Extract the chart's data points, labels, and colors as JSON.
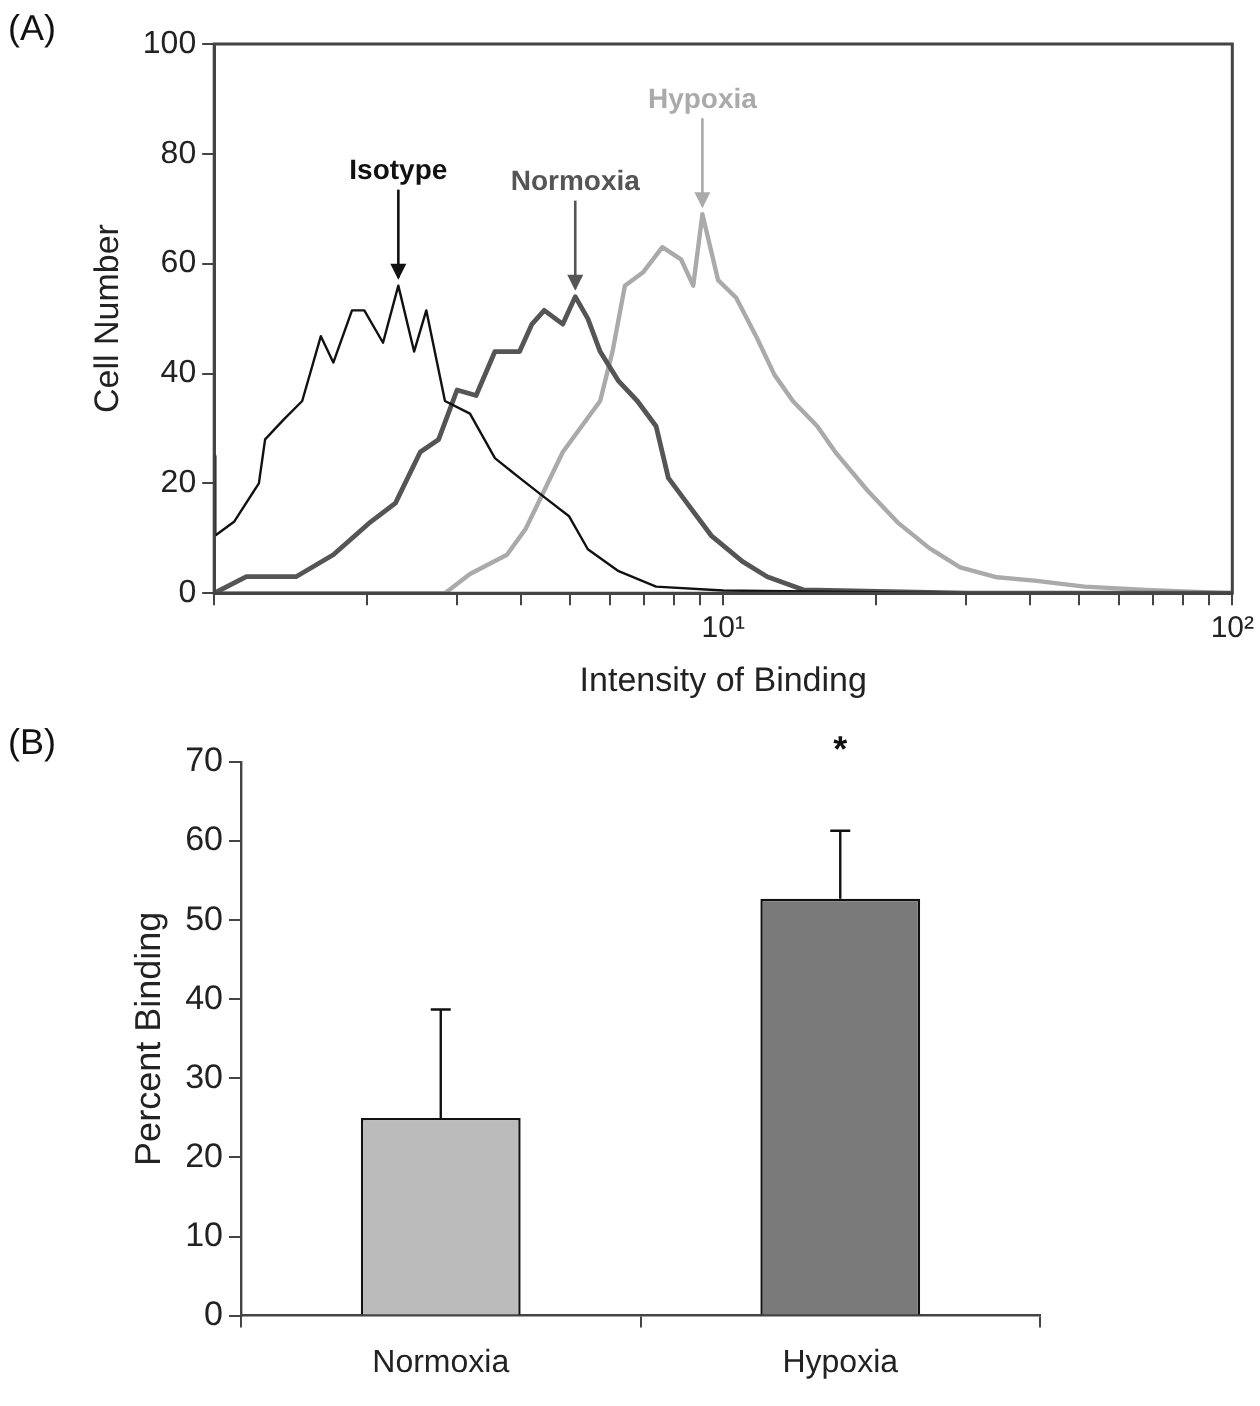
{
  "chart_data": [
    {
      "type": "line",
      "title": "(A)",
      "xlabel": "Intensity of Binding",
      "ylabel": "Cell Number",
      "log": "x",
      "grid": false,
      "marker": "none",
      "xlim": [
        1,
        100
      ],
      "xticks": [
        {
          "value": 1,
          "label": null
        },
        {
          "value": 2,
          "label": null
        },
        {
          "value": 3,
          "label": null
        },
        {
          "value": 4,
          "label": null
        },
        {
          "value": 5,
          "label": null
        },
        {
          "value": 6,
          "label": null
        },
        {
          "value": 7,
          "label": null
        },
        {
          "value": 8,
          "label": null
        },
        {
          "value": 9,
          "label": null
        },
        {
          "value": 10,
          "label": "10¹"
        },
        {
          "value": 20,
          "label": null
        },
        {
          "value": 30,
          "label": null
        },
        {
          "value": 40,
          "label": null
        },
        {
          "value": 50,
          "label": null
        },
        {
          "value": 60,
          "label": null
        },
        {
          "value": 70,
          "label": null
        },
        {
          "value": 80,
          "label": null
        },
        {
          "value": 90,
          "label": null
        },
        {
          "value": 100,
          "label": "10²"
        }
      ],
      "ylim": [
        0,
        100
      ],
      "yticks": [
        0,
        20,
        40,
        60,
        80,
        100
      ],
      "series": [
        {
          "name": "Isotype",
          "color": "#111111",
          "x": [
            1.0,
            1.005,
            1.094,
            1.224,
            1.259,
            1.369,
            1.489,
            1.62,
            1.714,
            1.865,
            1.972,
            2.146,
            2.3,
            2.47,
            2.61,
            2.84,
            3.18,
            3.56,
            3.98,
            4.45,
            4.98,
            5.42,
            6.23,
            7.38,
            10,
            15,
            30,
            100
          ],
          "values": [
            25,
            10.5,
            13,
            20,
            28,
            31.6,
            35,
            46.8,
            42,
            51.5,
            51.5,
            45.6,
            56,
            44,
            51.5,
            35,
            32.7,
            24.6,
            21,
            17.5,
            14,
            8,
            4,
            1.2,
            0.5,
            0.3,
            0,
            0
          ]
        },
        {
          "name": "Normoxia",
          "color": "#555555",
          "x": [
            1.0,
            1.157,
            1.448,
            1.714,
            2.03,
            2.27,
            2.54,
            2.76,
            3.0,
            3.27,
            3.56,
            3.98,
            4.21,
            4.45,
            4.84,
            5.12,
            5.42,
            5.73,
            6.23,
            6.78,
            7.38,
            7.8,
            8.49,
            9.47,
            10.9,
            12.2,
            14.4,
            30,
            100
          ],
          "values": [
            0,
            3,
            3,
            7,
            13,
            16.4,
            25.7,
            28,
            37,
            36,
            44,
            44,
            49,
            51.5,
            49,
            54,
            50,
            44,
            38.6,
            35,
            30.4,
            21,
            16.4,
            10.5,
            5.8,
            3,
            0.6,
            0,
            0
          ]
        },
        {
          "name": "Hypoxia",
          "color": "#aaaaaa",
          "x": [
            1.0,
            2.84,
            3.18,
            3.76,
            4.09,
            4.45,
            4.84,
            5.27,
            5.73,
            6.06,
            6.41,
            6.97,
            7.59,
            8.26,
            8.73,
            9.1,
            9.77,
            10.6,
            11.6,
            12.6,
            13.7,
            15.3,
            16.6,
            19.2,
            22.0,
            25.4,
            29.2,
            34.5,
            40.9,
            51.2,
            67.7,
            98
          ],
          "values": [
            0,
            0,
            3.5,
            7,
            11.7,
            18.7,
            25.7,
            30.4,
            35,
            44,
            56,
            58.5,
            63,
            60.8,
            56,
            69,
            57,
            53.8,
            46.8,
            39.8,
            35,
            30.4,
            25.7,
            18.7,
            12.9,
            8.2,
            4.7,
            2.9,
            2.3,
            1.2,
            0.6,
            0
          ]
        }
      ]
    },
    {
      "type": "bar",
      "title": "(B)",
      "ylabel": "Percent Binding",
      "grid": false,
      "categories": [
        "Normoxia",
        "Hypoxia"
      ],
      "values": [
        25,
        52.7
      ],
      "colors": [
        "#bbbbbb",
        "#7a7a7a"
      ],
      "errors": [
        [
          25,
          38.7
        ],
        [
          52.7,
          61.3
        ]
      ],
      "ylim": [
        0,
        70
      ],
      "yticks": [
        0,
        10,
        20,
        30,
        40,
        50,
        60,
        70
      ],
      "annotations": [
        "*"
      ]
    }
  ]
}
